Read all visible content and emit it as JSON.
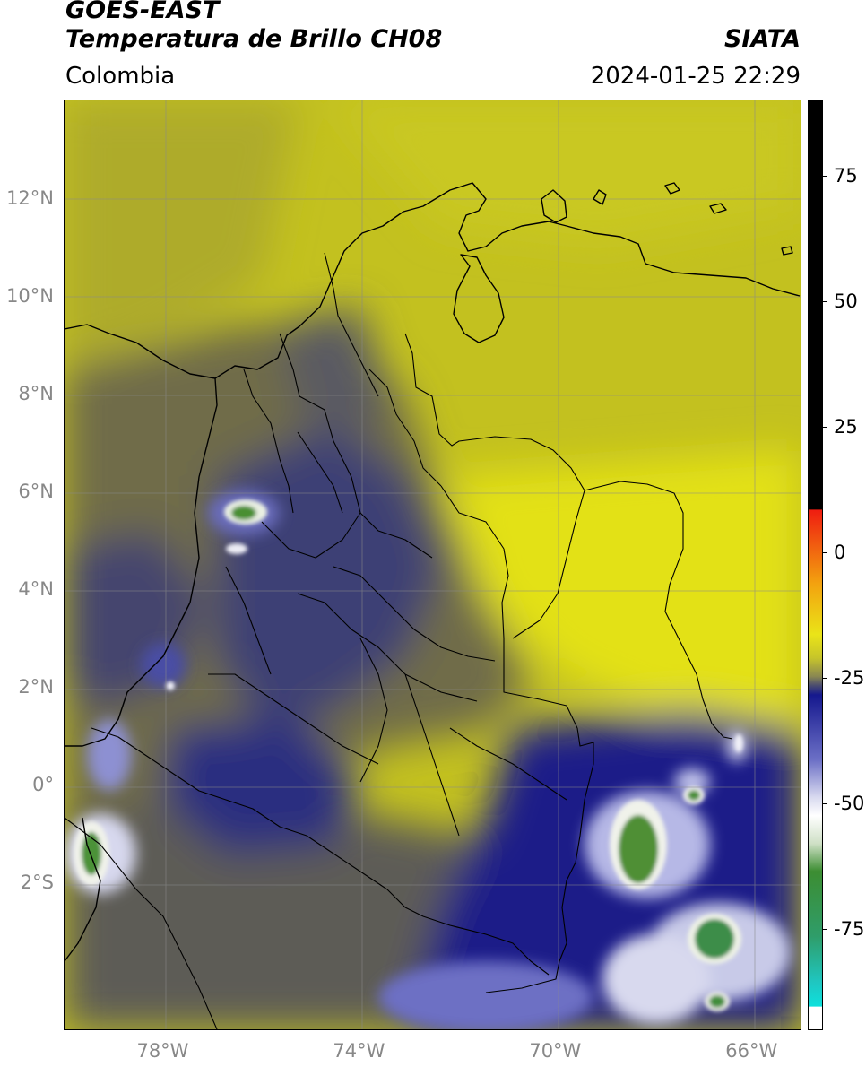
{
  "header": {
    "satellite": "GOES-EAST",
    "product": "Temperatura de Brillo CH08",
    "agency": "SIATA",
    "region": "Colombia",
    "datetime": "2024-01-25 22:29"
  },
  "map": {
    "lat_ticks": [
      {
        "label": "12°N",
        "value": 12
      },
      {
        "label": "10°N",
        "value": 10
      },
      {
        "label": "8°N",
        "value": 8
      },
      {
        "label": "6°N",
        "value": 6
      },
      {
        "label": "4°N",
        "value": 4
      },
      {
        "label": "2°N",
        "value": 2
      },
      {
        "label": "0°",
        "value": 0
      },
      {
        "label": "2°S",
        "value": -2
      }
    ],
    "lon_ticks": [
      {
        "label": "78°W",
        "value": -78
      },
      {
        "label": "74°W",
        "value": -74
      },
      {
        "label": "70°W",
        "value": -70
      },
      {
        "label": "66°W",
        "value": -66
      }
    ],
    "lat_range": [
      -5,
      14
    ],
    "lon_range": [
      -80,
      -65
    ],
    "colors": {
      "warm": "#e5e312",
      "mid": "#9c9a36",
      "cold": "#1a1e85",
      "very_cold": "#ffffff",
      "coldest": "#3f8d32"
    }
  },
  "colorbar": {
    "ticks": [
      {
        "label": "75",
        "value": 75
      },
      {
        "label": "50",
        "value": 50
      },
      {
        "label": "25",
        "value": 25
      },
      {
        "label": "0",
        "value": 0
      },
      {
        "label": "-25",
        "value": -25
      },
      {
        "label": "-50",
        "value": -50
      },
      {
        "label": "-75",
        "value": -75
      }
    ],
    "range": [
      -95,
      90
    ]
  }
}
